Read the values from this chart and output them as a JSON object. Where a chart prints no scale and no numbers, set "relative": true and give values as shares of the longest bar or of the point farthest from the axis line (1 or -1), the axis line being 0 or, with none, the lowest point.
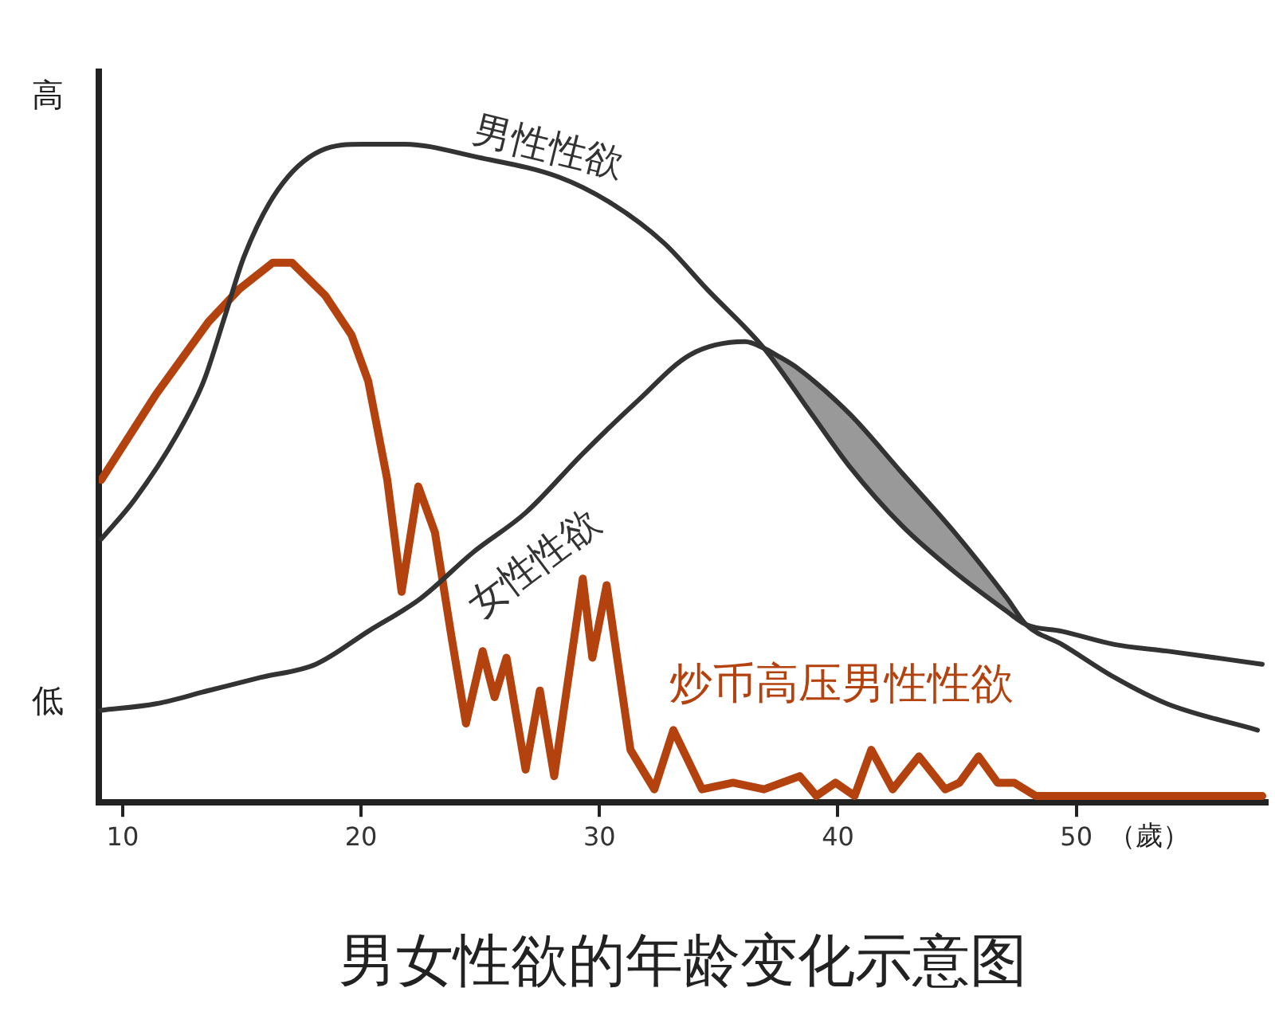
{
  "chart_data": {
    "type": "line",
    "title": "男女性欲的年龄变化示意图",
    "xlabel": "（歲）",
    "relative": true,
    "tick_labels": "x",
    "xlim": [
      9,
      58
    ],
    "xticks": [
      10,
      20,
      30,
      40,
      50
    ],
    "annotations": [
      "高",
      "低"
    ],
    "series": [
      {
        "name": "男性性欲",
        "color": "#333333",
        "x": [
          9.1,
          10.5,
          12.3,
          13.4,
          14.3,
          15.1,
          16.5,
          18.3,
          20.1,
          21.8,
          24.9,
          28.3,
          30.5,
          32.7,
          34.5,
          36.9,
          38.9,
          40.5,
          42.7,
          44.9,
          47.1,
          47.9,
          49.4,
          51.6,
          53.8,
          57.8
        ],
        "values": [
          0.4,
          0.46,
          0.56,
          0.64,
          0.74,
          0.83,
          0.93,
          0.99,
          1.0,
          1.0,
          0.98,
          0.95,
          0.91,
          0.85,
          0.78,
          0.69,
          0.59,
          0.51,
          0.42,
          0.35,
          0.29,
          0.27,
          0.26,
          0.24,
          0.23,
          0.21
        ]
      },
      {
        "name": "女性性欲",
        "color": "#333333",
        "x": [
          9.1,
          11.4,
          13.6,
          15.8,
          18.1,
          20.3,
          22.5,
          24.7,
          26.9,
          29.3,
          31.6,
          33.8,
          36.1,
          36.9,
          37.4,
          38.3,
          40.5,
          42.7,
          44.9,
          47.1,
          47.9,
          49.4,
          51.6,
          53.8,
          57.6
        ],
        "values": [
          0.14,
          0.15,
          0.17,
          0.19,
          0.21,
          0.26,
          0.31,
          0.38,
          0.44,
          0.53,
          0.61,
          0.68,
          0.7,
          0.69,
          0.68,
          0.66,
          0.59,
          0.5,
          0.41,
          0.31,
          0.27,
          0.24,
          0.19,
          0.15,
          0.11
        ],
        "lower": [
          null,
          null,
          null,
          null,
          null,
          null,
          null,
          null,
          null,
          null,
          null,
          null,
          null,
          0.69,
          0.67,
          0.62,
          0.51,
          0.42,
          0.35,
          0.29,
          0.27,
          null,
          null,
          null,
          null
        ],
        "upper": [
          null,
          null,
          null,
          null,
          null,
          null,
          null,
          null,
          null,
          null,
          null,
          null,
          null,
          0.69,
          0.68,
          0.66,
          0.59,
          0.5,
          0.41,
          0.31,
          0.27,
          null,
          null,
          null,
          null
        ]
      },
      {
        "name": "炒币高压男性性欲",
        "color": "#b4420e",
        "x": [
          9.1,
          11.4,
          13.6,
          14.9,
          16.3,
          17.1,
          18.5,
          19.6,
          20.3,
          21.1,
          21.7,
          22.4,
          23.1,
          23.8,
          24.4,
          25.1,
          25.6,
          26.1,
          26.9,
          27.5,
          28.1,
          29.3,
          29.7,
          30.3,
          31.3,
          32.3,
          33.1,
          34.3,
          35.6,
          36.9,
          38.4,
          39.1,
          39.9,
          40.7,
          41.4,
          42.3,
          43.4,
          44.5,
          45.1,
          45.9,
          46.7,
          47.4,
          48.3,
          49.6,
          52.9,
          57.8
        ],
        "values": [
          0.49,
          0.62,
          0.73,
          0.78,
          0.82,
          0.82,
          0.77,
          0.71,
          0.64,
          0.49,
          0.32,
          0.48,
          0.41,
          0.25,
          0.12,
          0.23,
          0.16,
          0.22,
          0.05,
          0.17,
          0.04,
          0.34,
          0.22,
          0.33,
          0.08,
          0.02,
          0.11,
          0.02,
          0.03,
          0.02,
          0.04,
          0.01,
          0.03,
          0.01,
          0.08,
          0.02,
          0.07,
          0.02,
          0.03,
          0.07,
          0.03,
          0.03,
          0.01,
          0.01,
          0.01,
          0.01
        ]
      }
    ]
  }
}
